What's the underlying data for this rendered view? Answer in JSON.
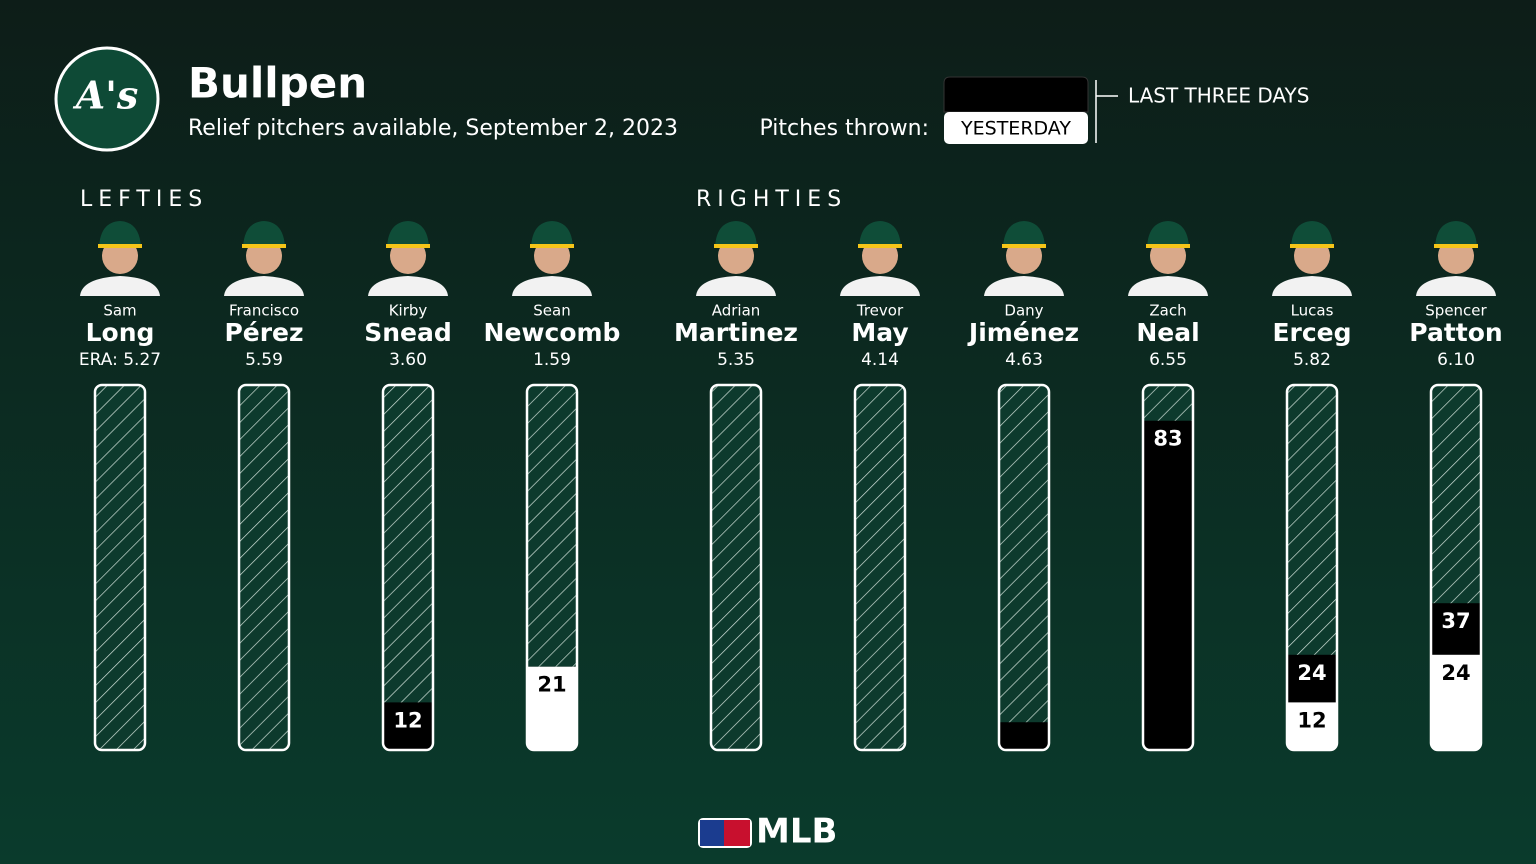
{
  "header": {
    "logo_text": "A's",
    "title": "Bullpen",
    "subtitle": "Relief pitchers available, September 2, 2023",
    "legend_label": "Pitches thrown:"
  },
  "chart_data": {
    "type": "overlap-bar",
    "era_label": "ERA:",
    "ylim": [
      0,
      92
    ],
    "series": [
      {
        "name": "LAST THREE DAYS",
        "color": "#000000"
      },
      {
        "name": "YESTERDAY",
        "color": "#ffffff"
      }
    ],
    "groups": [
      {
        "label": "LEFTIES",
        "first_names": [
          "Sam",
          "Francisco",
          "Kirby",
          "Sean"
        ],
        "categories": [
          "Long",
          "Pérez",
          "Snead",
          "Newcomb"
        ],
        "era": [
          "5.27",
          "5.59",
          "3.60",
          "1.59"
        ],
        "series": [
          {
            "values": [
              0,
              0,
              12,
              21
            ]
          },
          {
            "values": [
              0,
              0,
              0,
              21
            ]
          }
        ]
      },
      {
        "label": "RIGHTIES",
        "first_names": [
          "Adrian",
          "Trevor",
          "Dany",
          "Zach",
          "Lucas",
          "Spencer"
        ],
        "categories": [
          "Martinez",
          "May",
          "Jiménez",
          "Neal",
          "Erceg",
          "Patton"
        ],
        "era": [
          "5.35",
          "4.14",
          "4.63",
          "6.55",
          "5.82",
          "6.10"
        ],
        "series": [
          {
            "values": [
              0,
              0,
              7,
              83,
              24,
              37
            ]
          },
          {
            "values": [
              0,
              0,
              0,
              0,
              12,
              24
            ]
          }
        ]
      }
    ]
  },
  "footer": {
    "brand": "MLB"
  }
}
